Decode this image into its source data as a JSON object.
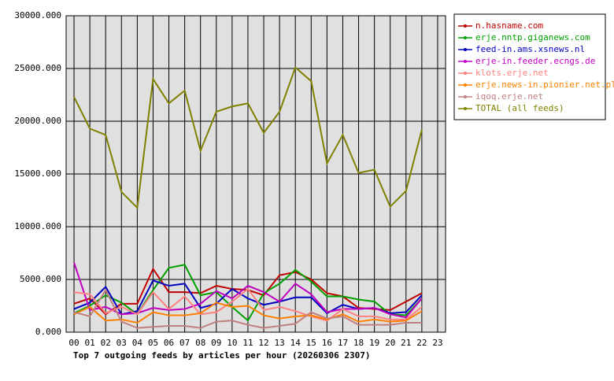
{
  "chart_data": {
    "type": "line",
    "title": "Top 7 outgoing feeds by articles per hour (20260306 2307)",
    "categories": [
      "00",
      "01",
      "02",
      "03",
      "04",
      "05",
      "06",
      "07",
      "08",
      "09",
      "10",
      "11",
      "12",
      "13",
      "14",
      "15",
      "16",
      "17",
      "18",
      "19",
      "20",
      "21",
      "22",
      "23"
    ],
    "ylim": [
      0,
      30000
    ],
    "yticks": [
      {
        "value": 0,
        "label": "0.000"
      },
      {
        "value": 5000,
        "label": "5000.000"
      },
      {
        "value": 10000,
        "label": "10000.000"
      },
      {
        "value": 15000,
        "label": "15000.000"
      },
      {
        "value": 20000,
        "label": "20000.000"
      },
      {
        "value": 25000,
        "label": "25000.000"
      },
      {
        "value": 30000,
        "label": "30000.000"
      }
    ],
    "grid": true,
    "legend": "outside-right",
    "background": "#e0e0e0",
    "series": [
      {
        "name": "n.hasname.com",
        "color": "#c00000",
        "values": [
          2700,
          3200,
          1700,
          2700,
          2700,
          6000,
          3800,
          3800,
          3700,
          4400,
          4100,
          4000,
          3500,
          5400,
          5700,
          5000,
          3700,
          3400,
          2300,
          2200,
          2100,
          2900,
          3700,
          null
        ]
      },
      {
        "name": "erje.nntp.giganews.com",
        "color": "#00a000",
        "values": [
          1800,
          2500,
          3500,
          2800,
          1700,
          4000,
          6100,
          6400,
          3500,
          3800,
          2400,
          1100,
          3700,
          4600,
          5900,
          4800,
          3400,
          3400,
          3100,
          2900,
          1700,
          1600,
          3200,
          null
        ]
      },
      {
        "name": "feed-in.ams.xsnews.nl",
        "color": "#0000c0",
        "values": [
          2200,
          2800,
          4300,
          1700,
          2000,
          4900,
          4400,
          4600,
          2300,
          2700,
          4100,
          3200,
          2600,
          2900,
          3300,
          3300,
          1800,
          2600,
          2200,
          2300,
          1800,
          1900,
          3500,
          null
        ]
      },
      {
        "name": "erje-in.feeder.ecngs.de",
        "color": "#c000c0",
        "values": [
          6600,
          2100,
          2400,
          1700,
          1800,
          2300,
          2100,
          2200,
          2700,
          3900,
          3200,
          4400,
          3800,
          2900,
          4600,
          3600,
          1900,
          2200,
          2200,
          2300,
          1700,
          1400,
          3200,
          null
        ]
      },
      {
        "name": "klots.erje.net",
        "color": "#ff8080",
        "values": [
          3800,
          3600,
          1800,
          2400,
          1700,
          3800,
          2200,
          3400,
          1700,
          1900,
          2900,
          4100,
          2100,
          2400,
          2000,
          1500,
          1100,
          2200,
          1500,
          1500,
          1200,
          1200,
          2400,
          null
        ]
      },
      {
        "name": "erje.news-in.pionier.net.pl",
        "color": "#ff8000",
        "values": [
          1700,
          2400,
          1100,
          1200,
          900,
          1900,
          1600,
          1600,
          1800,
          2800,
          2400,
          2500,
          1600,
          1300,
          1500,
          1600,
          1200,
          1700,
          1000,
          1200,
          1000,
          1100,
          2000,
          null
        ]
      },
      {
        "name": "iqoq.erje.net",
        "color": "#c08080",
        "values": [
          1900,
          1500,
          4000,
          1000,
          400,
          500,
          600,
          600,
          400,
          1000,
          1100,
          700,
          400,
          600,
          800,
          1900,
          1300,
          1500,
          700,
          700,
          700,
          900,
          900,
          null
        ]
      },
      {
        "name": "TOTAL (all feeds)",
        "color": "#808000",
        "values": [
          22300,
          19300,
          18700,
          13300,
          11800,
          24000,
          21700,
          22900,
          17200,
          20900,
          21400,
          21700,
          18900,
          20900,
          25100,
          23800,
          16000,
          18700,
          15100,
          15400,
          11900,
          13400,
          19200,
          null
        ]
      }
    ]
  }
}
